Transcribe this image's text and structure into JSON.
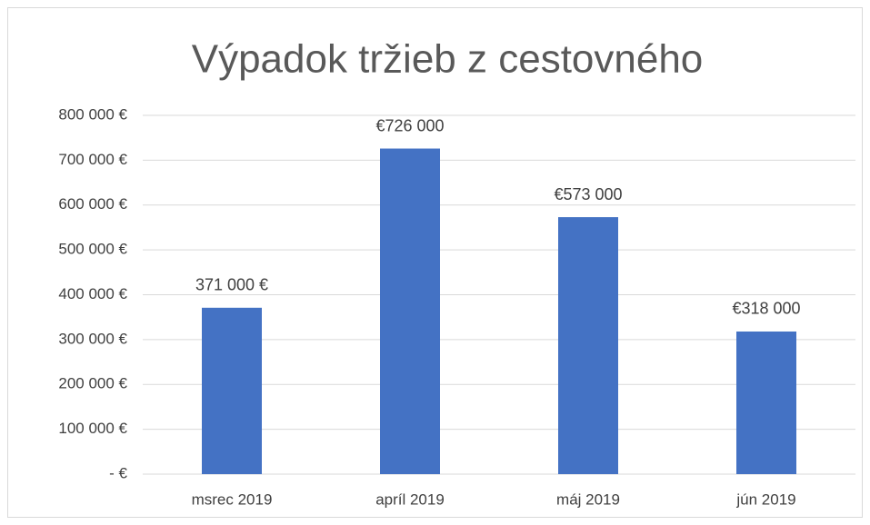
{
  "chart_data": {
    "type": "bar",
    "title": "Výpadok tržieb z cestovného",
    "categories": [
      "msrec 2019",
      "apríl 2019",
      "máj 2019",
      "jún 2019"
    ],
    "values": [
      371000,
      726000,
      573000,
      318000
    ],
    "value_labels": [
      "371 000 €",
      "€726 000",
      "€573 000",
      "€318 000"
    ],
    "color": "#4472c4",
    "ylim": [
      0,
      800000
    ],
    "yticks": [
      {
        "value": 0,
        "label": "-  €"
      },
      {
        "value": 100000,
        "label": "100 000 €"
      },
      {
        "value": 200000,
        "label": "200 000 €"
      },
      {
        "value": 300000,
        "label": "300 000 €"
      },
      {
        "value": 400000,
        "label": "400 000 €"
      },
      {
        "value": 500000,
        "label": "500 000 €"
      },
      {
        "value": 600000,
        "label": "600 000 €"
      },
      {
        "value": 700000,
        "label": "700 000 €"
      },
      {
        "value": 800000,
        "label": "800 000 €"
      }
    ],
    "grid": true
  }
}
